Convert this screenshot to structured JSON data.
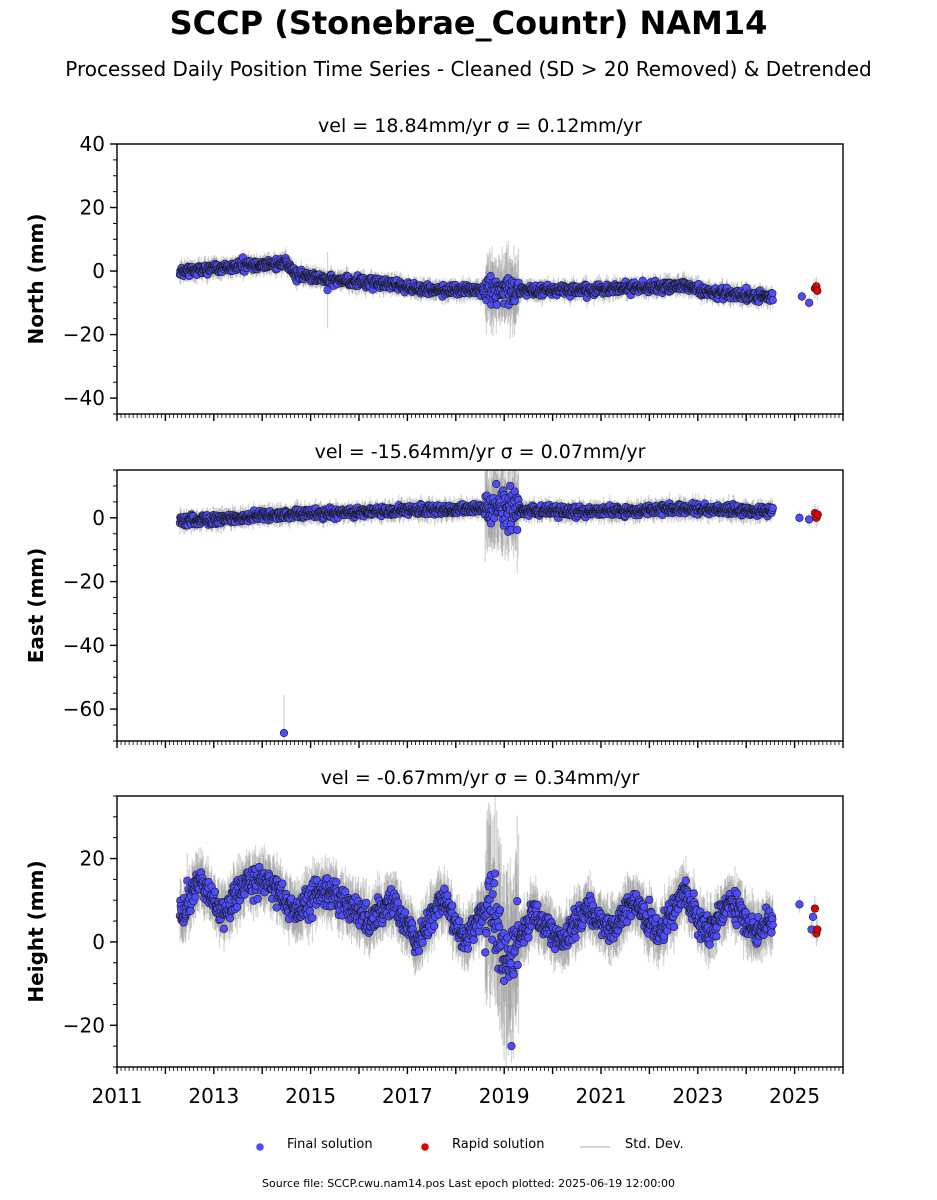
{
  "figure": {
    "title": "SCCP (Stonebrae_Countr) NAM14",
    "subtitle": "Processed Daily Position Time Series - Cleaned (SD > 20 Removed) & Detrended",
    "footer": "Source file: SCCP.cwu.nam14.pos  Last epoch plotted: 2025-06-19 12:00:00"
  },
  "colors": {
    "final": "#4d4dff",
    "rapid": "#e00000",
    "std_dev": "#c8c8c8",
    "marker_edge": "#1a1a1a"
  },
  "legend": {
    "final_label": "Final solution",
    "rapid_label": "Rapid solution",
    "std_label": "Std. Dev."
  },
  "chart_data": [
    {
      "type": "scatter",
      "panel": "north",
      "title": "vel = 18.84mm/yr   σ = 0.12mm/yr",
      "ylabel": "North (mm)",
      "xlim": [
        2011,
        2026
      ],
      "ylim": [
        -45,
        40
      ],
      "yticks": [
        -40,
        -20,
        0,
        20,
        40
      ],
      "trend": [
        [
          2012.3,
          0
        ],
        [
          2013.5,
          1.5
        ],
        [
          2014.5,
          2.5
        ],
        [
          2014.7,
          -1
        ],
        [
          2015.5,
          -3
        ],
        [
          2016.5,
          -4
        ],
        [
          2017.5,
          -6
        ],
        [
          2018.5,
          -6
        ],
        [
          2019.5,
          -6
        ],
        [
          2020.5,
          -6
        ],
        [
          2021.5,
          -5.5
        ],
        [
          2022.7,
          -4.5
        ],
        [
          2023.3,
          -7
        ],
        [
          2024.5,
          -8
        ]
      ],
      "scatter": 1.6,
      "std_range": [
        1.5,
        3.5
      ],
      "noisy_window": [
        2018.6,
        2019.3,
        4,
        8
      ],
      "outliers": [
        {
          "x": 2015.35,
          "y": -6,
          "sd": 12
        }
      ],
      "final_extra": [
        {
          "x": 2025.15,
          "y": -8
        },
        {
          "x": 2025.3,
          "y": -10
        }
      ],
      "rapid": [
        {
          "x": 2025.42,
          "y": -5.5
        },
        {
          "x": 2025.45,
          "y": -4.8
        },
        {
          "x": 2025.47,
          "y": -6.2
        }
      ]
    },
    {
      "type": "scatter",
      "panel": "east",
      "title": "vel = -15.64mm/yr   σ = 0.07mm/yr",
      "ylabel": "East (mm)",
      "xlim": [
        2011,
        2026
      ],
      "ylim": [
        -70,
        15
      ],
      "yticks": [
        -60,
        -40,
        -20,
        0
      ],
      "trend": [
        [
          2012.3,
          -1
        ],
        [
          2013.5,
          0
        ],
        [
          2014.5,
          1
        ],
        [
          2015.5,
          1.5
        ],
        [
          2016.5,
          2
        ],
        [
          2017.5,
          2.5
        ],
        [
          2018.5,
          3
        ],
        [
          2019.5,
          2.5
        ],
        [
          2020.5,
          2
        ],
        [
          2021.5,
          2
        ],
        [
          2022.5,
          3
        ],
        [
          2023.5,
          2.5
        ],
        [
          2024.5,
          2
        ]
      ],
      "scatter": 1.5,
      "std_range": [
        1.5,
        3.5
      ],
      "noisy_window": [
        2018.6,
        2019.3,
        6,
        10
      ],
      "outliers": [
        {
          "x": 2014.45,
          "y": -67.5,
          "sd": 12
        }
      ],
      "final_extra": [
        {
          "x": 2025.1,
          "y": 0
        },
        {
          "x": 2025.3,
          "y": -0.5
        }
      ],
      "rapid": [
        {
          "x": 2025.42,
          "y": 1.5
        },
        {
          "x": 2025.45,
          "y": 0
        },
        {
          "x": 2025.48,
          "y": 1
        }
      ]
    },
    {
      "type": "scatter",
      "panel": "height",
      "title": "vel = -0.67mm/yr   σ = 0.34mm/yr",
      "ylabel": "Height (mm)",
      "xlim": [
        2011,
        2026
      ],
      "ylim": [
        -30,
        35
      ],
      "yticks": [
        -20,
        0,
        20
      ],
      "xticks": [
        2011,
        2013,
        2015,
        2017,
        2019,
        2021,
        2023,
        2025
      ],
      "trend": [
        [
          2012.3,
          5
        ],
        [
          2012.7,
          15
        ],
        [
          2013.2,
          7
        ],
        [
          2013.7,
          15
        ],
        [
          2014.2,
          14
        ],
        [
          2014.7,
          7
        ],
        [
          2015.2,
          12
        ],
        [
          2015.7,
          10
        ],
        [
          2016.2,
          5
        ],
        [
          2016.7,
          10
        ],
        [
          2017.2,
          0
        ],
        [
          2017.7,
          10
        ],
        [
          2018.2,
          0
        ],
        [
          2018.7,
          10
        ],
        [
          2019.1,
          -5
        ],
        [
          2019.6,
          7
        ],
        [
          2020.2,
          0
        ],
        [
          2020.7,
          8
        ],
        [
          2021.2,
          3
        ],
        [
          2021.7,
          10
        ],
        [
          2022.2,
          2
        ],
        [
          2022.7,
          12
        ],
        [
          2023.2,
          2
        ],
        [
          2023.7,
          10
        ],
        [
          2024.2,
          2
        ],
        [
          2024.5,
          5
        ]
      ],
      "scatter": 3.5,
      "std_range": [
        4,
        7
      ],
      "noisy_window": [
        2018.6,
        2019.3,
        10,
        16
      ],
      "outliers": [
        {
          "x": 2019.15,
          "y": -25,
          "sd": 4
        }
      ],
      "final_extra": [
        {
          "x": 2025.1,
          "y": 9
        },
        {
          "x": 2025.35,
          "y": 3
        },
        {
          "x": 2025.38,
          "y": 6
        }
      ],
      "rapid": [
        {
          "x": 2025.42,
          "y": 8
        },
        {
          "x": 2025.45,
          "y": 2
        },
        {
          "x": 2025.47,
          "y": 3
        }
      ]
    }
  ]
}
